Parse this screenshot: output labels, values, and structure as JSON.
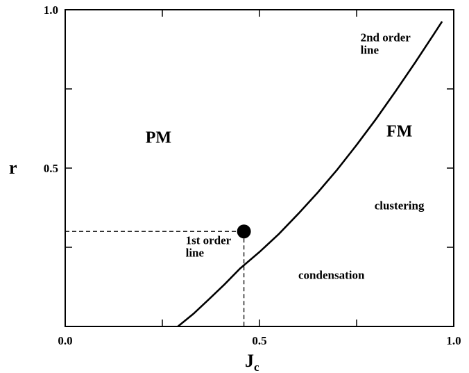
{
  "chart_data": {
    "type": "line",
    "title": "",
    "xlabel": "J",
    "xlabel_subscript": "c",
    "ylabel": "r",
    "xlim": [
      0.0,
      1.0
    ],
    "ylim": [
      0.0,
      1.0
    ],
    "grid": false,
    "x_tick_labels": [
      "0.0",
      "0.5",
      "1.0"
    ],
    "y_tick_labels": [
      "0.0",
      "0.5",
      "1.0"
    ],
    "x_ticks": [
      0.0,
      0.25,
      0.5,
      0.75,
      1.0
    ],
    "y_ticks": [
      0.0,
      0.25,
      0.5,
      0.75,
      1.0
    ],
    "series": [
      {
        "x": [
          0.29,
          0.33,
          0.37,
          0.41,
          0.45,
          0.5,
          0.55,
          0.6,
          0.65,
          0.7,
          0.75,
          0.8,
          0.85,
          0.9,
          0.95,
          0.97
        ],
        "y": [
          0.0,
          0.04,
          0.086,
          0.133,
          0.183,
          0.235,
          0.292,
          0.356,
          0.423,
          0.495,
          0.573,
          0.655,
          0.742,
          0.832,
          0.925,
          0.963
        ]
      }
    ],
    "critical_point": {
      "x": 0.46,
      "y": 0.3
    },
    "region_labels": [
      {
        "text": "PM",
        "x": 0.24,
        "y": 0.58
      },
      {
        "text": "FM",
        "x": 0.86,
        "y": 0.6
      }
    ],
    "annotations": [
      {
        "lines": [
          "2nd order",
          "line"
        ],
        "x": 0.76,
        "y": 0.9
      },
      {
        "lines": [
          "1st order",
          "line"
        ],
        "x": 0.31,
        "y": 0.26
      },
      {
        "text": "clustering",
        "x": 0.86,
        "y": 0.37
      },
      {
        "text": "condensation",
        "x": 0.6,
        "y": 0.15
      }
    ]
  }
}
